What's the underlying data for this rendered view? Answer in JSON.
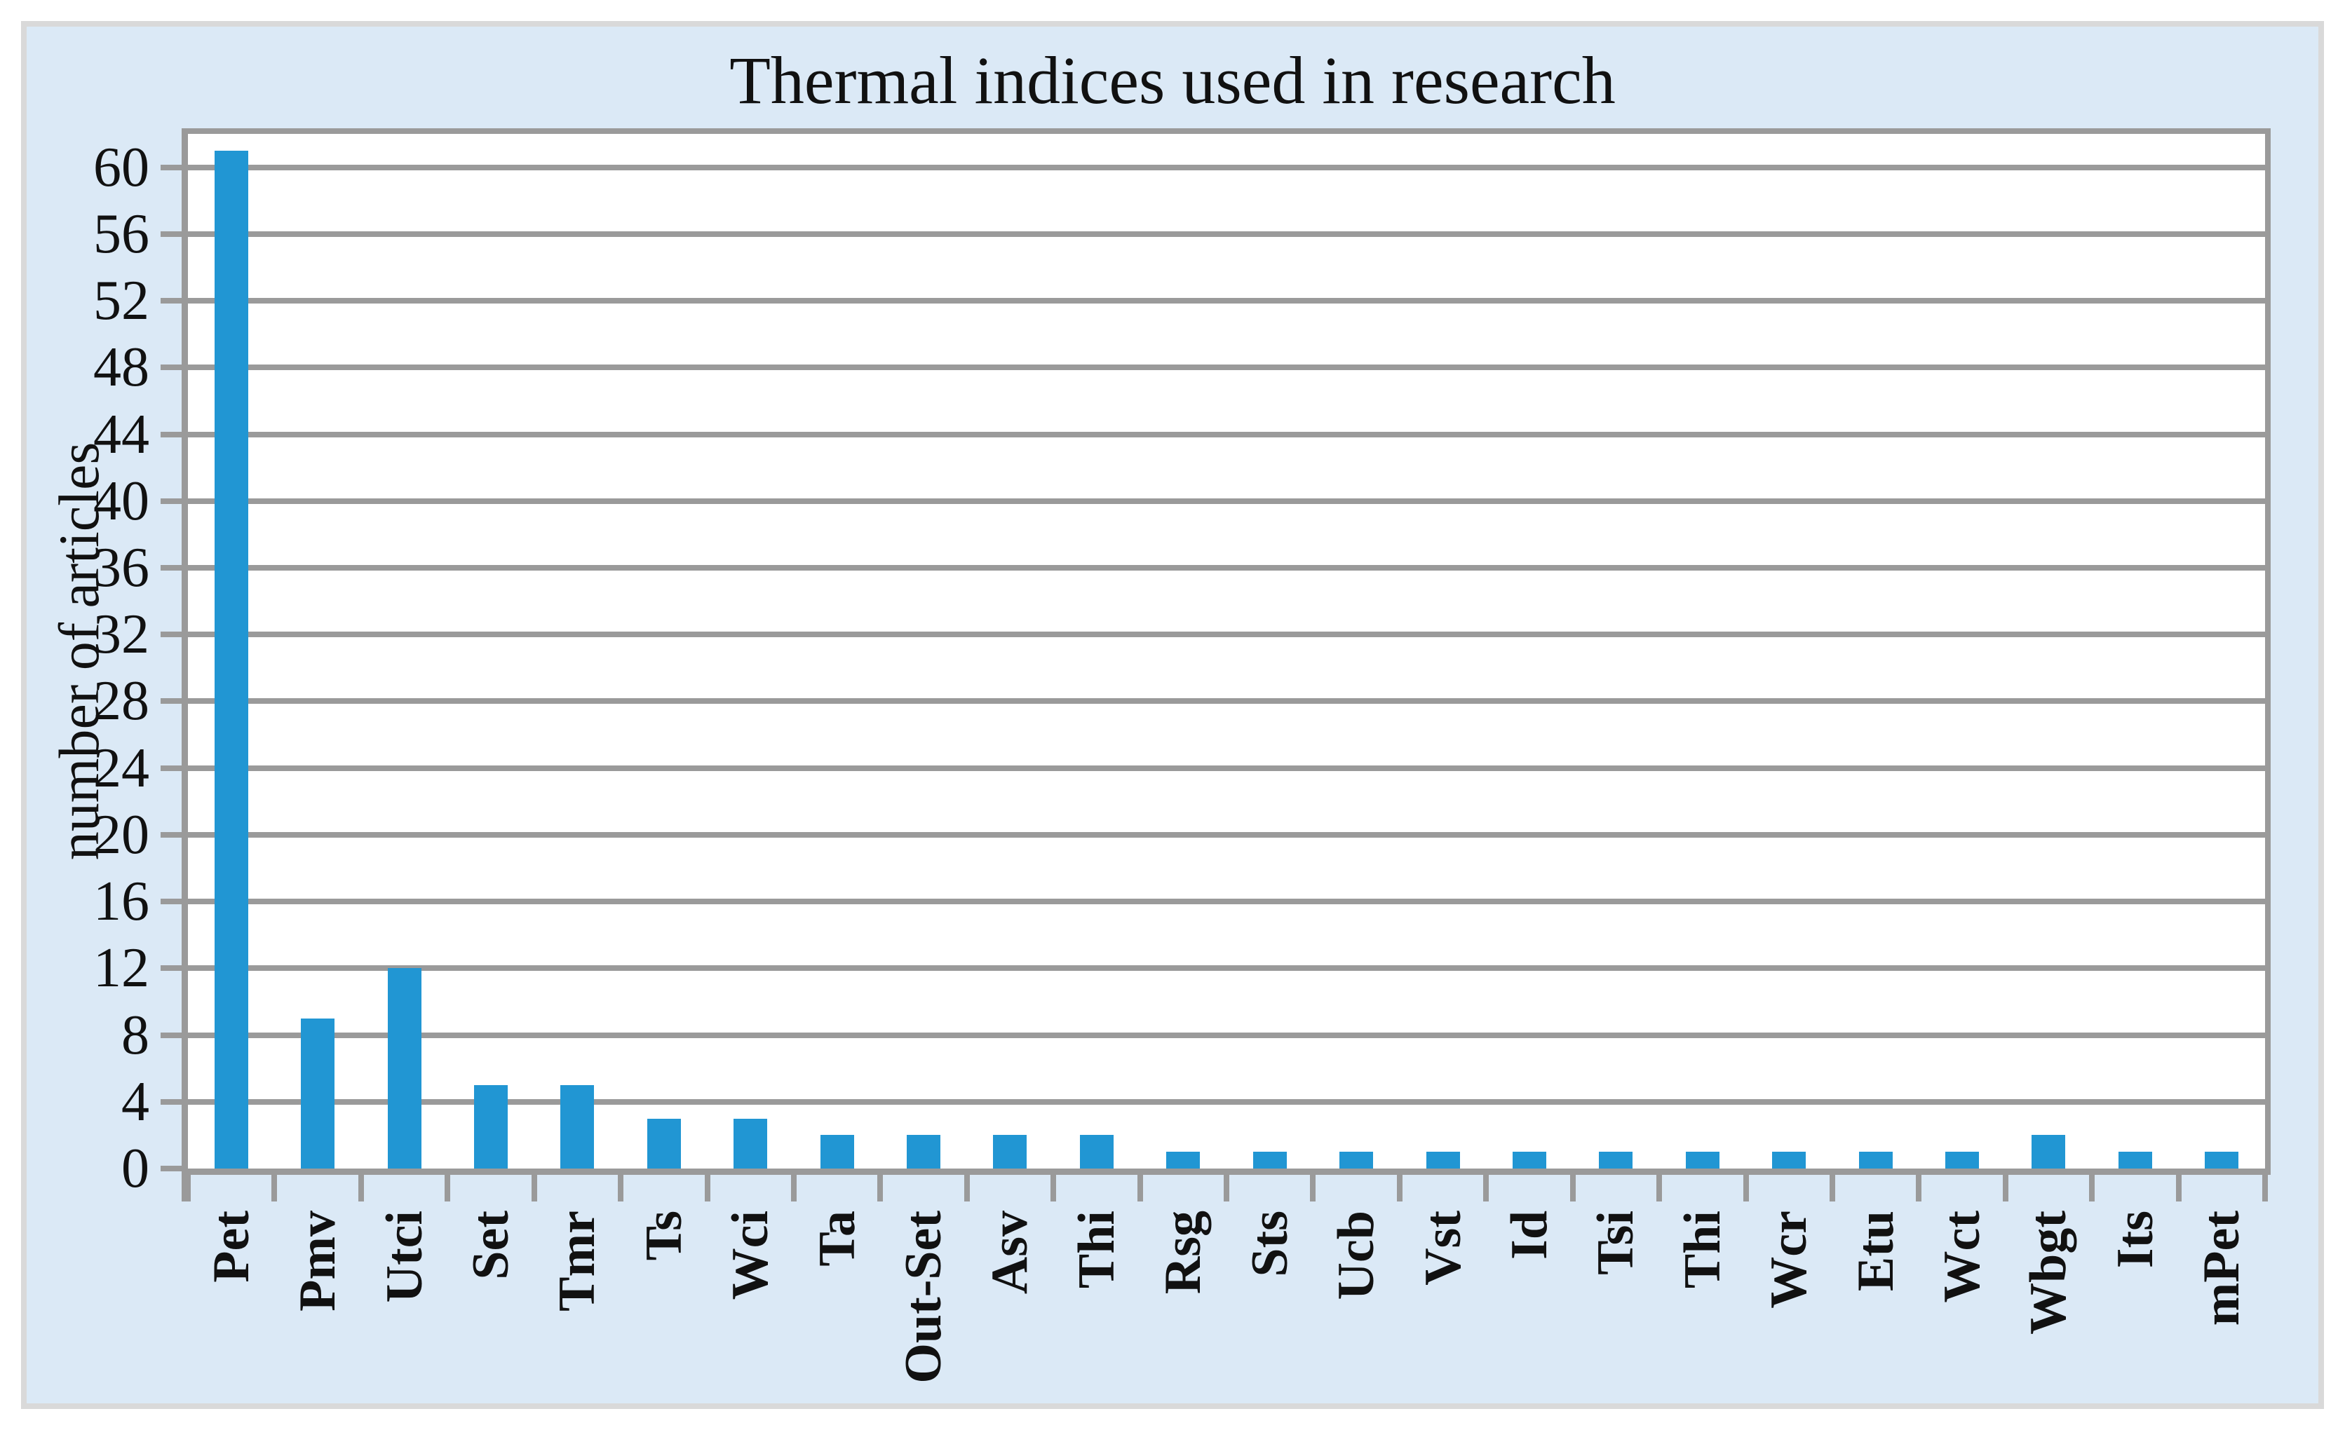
{
  "chart_data": {
    "type": "bar",
    "title": "Thermal indices used in research",
    "xlabel": "",
    "ylabel": "number of articles",
    "categories": [
      "Pet",
      "Pmv",
      "Utci",
      "Set",
      "Tmr",
      "Ts",
      "Wci",
      "Ta",
      "Out-Set",
      "Asv",
      "Thi",
      "Rsg",
      "Sts",
      "Ucb",
      "Vst",
      "Id",
      "Tsi",
      "Thi",
      "Wcr",
      "Etu",
      "Wct",
      "Wbgt",
      "Its",
      "mPet"
    ],
    "values": [
      61,
      9,
      12,
      5,
      5,
      3,
      3,
      2,
      2,
      2,
      2,
      1,
      1,
      1,
      1,
      1,
      1,
      1,
      1,
      1,
      1,
      2,
      1,
      1
    ],
    "yticks": [
      0,
      4,
      8,
      12,
      16,
      20,
      24,
      28,
      32,
      36,
      40,
      44,
      48,
      52,
      56,
      60
    ],
    "ylim": [
      0,
      62
    ],
    "grid": "horizontal gridlines every 4 units",
    "legend_position": "none",
    "colors": {
      "bar": "#2196d3",
      "grid": "#9a9a9a",
      "panel_bg": "#dbe9f6",
      "plot_bg": "#ffffff",
      "border": "#d9d9d9",
      "text": "#111111"
    }
  }
}
